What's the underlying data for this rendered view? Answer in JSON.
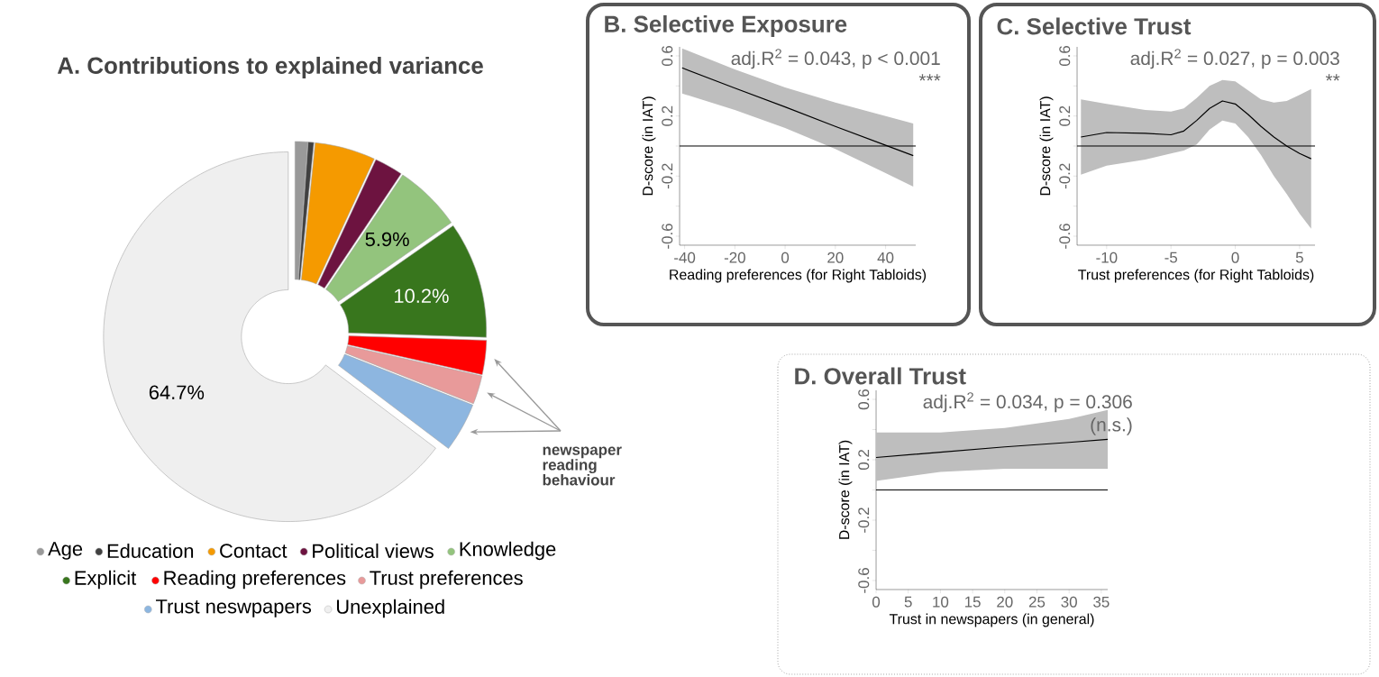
{
  "chart_data": [
    {
      "type": "donut",
      "title": "A. Contributions to explained variance",
      "categories": [
        "Age",
        "Education",
        "Contact",
        "Political views",
        "Knowledge",
        "Explicit",
        "Reading preferences",
        "Trust preferences",
        "Trust neswpapers",
        "Unexplained"
      ],
      "values": [
        1.1,
        0.5,
        5.3,
        2.5,
        5.9,
        10.2,
        3.0,
        2.5,
        4.3,
        64.7
      ],
      "colors": [
        "#999999",
        "#404040",
        "#f59a00",
        "#6d1340",
        "#93c47d",
        "#38761d",
        "#ff0000",
        "#e89a9a",
        "#8db6e0",
        "#efefef"
      ],
      "value_labels": [
        null,
        null,
        null,
        null,
        "5.9%",
        "10.2%",
        null,
        null,
        null,
        "64.7%"
      ],
      "legend": "bottom",
      "annotations": [
        "newspaper reading behaviour"
      ]
    },
    {
      "type": "line",
      "title": "B. Selective Exposure",
      "xlabel": "Reading preferences (for Right Tabloids)",
      "ylabel": "D-score (in IAT)",
      "annotations": [
        "adj.R$^{2}$ = 0.043, p < 0.001",
        "***"
      ],
      "xlim": [
        -42,
        52
      ],
      "ylim": [
        -0.66,
        0.66
      ],
      "xticks": [
        -40,
        -20,
        0,
        20,
        40
      ],
      "yticks": [
        -0.6,
        {
          "value": -0.4,
          "label": null
        },
        -0.2,
        {
          "value": 0,
          "label": null
        },
        0.2,
        {
          "value": 0.4,
          "label": null
        },
        0.6
      ],
      "ref_lines": [
        {
          "axis": "y",
          "value": 0,
          "color": "#000000"
        }
      ],
      "series": [
        {
          "color": "#000000",
          "x": [
            -41,
            -20,
            0,
            20,
            40,
            51
          ],
          "values": [
            0.52,
            0.385,
            0.26,
            0.13,
            0.005,
            -0.064
          ],
          "lower": [
            0.35,
            0.24,
            0.12,
            -0.02,
            -0.18,
            -0.27
          ],
          "upper": [
            0.65,
            0.51,
            0.39,
            0.29,
            0.2,
            0.15
          ]
        }
      ]
    },
    {
      "type": "line",
      "title": "C. Selective Trust",
      "xlabel": "Trust preferences (for Right Tabloids)",
      "ylabel": "D-score (in IAT)",
      "annotations": [
        "adj.R$^{2}$ =  0.027, p = 0.003",
        "**"
      ],
      "xlim": [
        -12.3,
        6.2
      ],
      "ylim": [
        -0.66,
        0.66
      ],
      "xticks": [
        -10,
        -5,
        0,
        5
      ],
      "yticks": [
        -0.6,
        {
          "value": -0.4,
          "label": null
        },
        -0.2,
        {
          "value": 0,
          "label": null
        },
        0.2,
        {
          "value": 0.4,
          "label": null
        },
        0.6
      ],
      "ref_lines": [
        {
          "axis": "y",
          "value": 0,
          "color": "#000000"
        }
      ],
      "series": [
        {
          "color": "#000000",
          "x": [
            -12,
            -10,
            -7,
            -5,
            -4,
            -3,
            -2,
            -1,
            0,
            1,
            2,
            3,
            4,
            5,
            5.9
          ],
          "values": [
            0.06,
            0.09,
            0.085,
            0.075,
            0.1,
            0.17,
            0.25,
            0.3,
            0.28,
            0.21,
            0.13,
            0.06,
            0.0,
            -0.05,
            -0.085
          ],
          "lower": [
            -0.19,
            -0.13,
            -0.09,
            -0.05,
            -0.03,
            0.01,
            0.11,
            0.17,
            0.15,
            0.06,
            -0.06,
            -0.2,
            -0.32,
            -0.45,
            -0.55
          ],
          "upper": [
            0.31,
            0.28,
            0.24,
            0.23,
            0.25,
            0.32,
            0.4,
            0.44,
            0.43,
            0.37,
            0.31,
            0.29,
            0.3,
            0.34,
            0.38
          ]
        }
      ]
    },
    {
      "type": "line",
      "title": "D. Overall Trust",
      "xlabel": "Trust in newspapers (in general)",
      "ylabel": "D-score (in IAT)",
      "annotations": [
        "adj.R$^{2}$ = 0.034, p = 0.306",
        "(n.s.)"
      ],
      "xlim": [
        0,
        36
      ],
      "ylim": [
        -0.66,
        0.66
      ],
      "xticks": [
        0,
        5,
        10,
        15,
        20,
        25,
        30,
        35
      ],
      "yticks": [
        -0.6,
        {
          "value": -0.4,
          "label": null
        },
        -0.2,
        {
          "value": 0,
          "label": null
        },
        0.2,
        {
          "value": 0.4,
          "label": null
        },
        0.6
      ],
      "ref_lines": [
        {
          "axis": "y",
          "value": 0,
          "color": "#000000"
        }
      ],
      "series": [
        {
          "color": "#000000",
          "x": [
            0,
            10,
            20,
            30,
            36
          ],
          "values": [
            0.215,
            0.25,
            0.285,
            0.315,
            0.335
          ],
          "lower": [
            0.06,
            0.12,
            0.14,
            0.14,
            0.14
          ],
          "upper": [
            0.38,
            0.38,
            0.41,
            0.47,
            0.53
          ]
        }
      ]
    }
  ]
}
